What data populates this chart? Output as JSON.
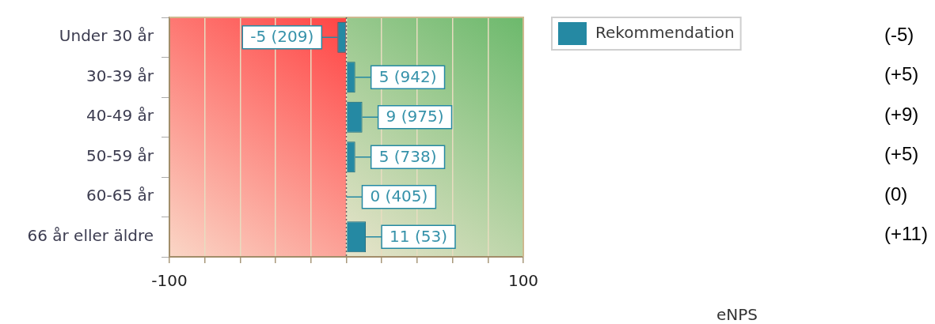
{
  "chart_data": {
    "type": "bar",
    "orientation": "horizontal",
    "categories": [
      "Under 30 år",
      "30-39 år",
      "40-49 år",
      "50-59 år",
      "60-65 år",
      "66 år eller äldre"
    ],
    "series": [
      {
        "name": "Rekommendation",
        "color": "#2589a3",
        "values": [
          -5,
          5,
          9,
          5,
          0,
          11
        ],
        "value_labels": [
          "-5 (209)",
          "5 (942)",
          "9 (975)",
          "5 (738)",
          "0 (405)",
          "11 (53)"
        ]
      }
    ],
    "xlim": [
      -100,
      100
    ],
    "xticks": [
      -100,
      {
        "value": -80,
        "label": null
      },
      {
        "value": -60,
        "label": null
      },
      {
        "value": -40,
        "label": null
      },
      {
        "value": -20,
        "label": null
      },
      {
        "value": 0,
        "label": null
      },
      {
        "value": 20,
        "label": null
      },
      {
        "value": 40,
        "label": null
      },
      {
        "value": 60,
        "label": null
      },
      {
        "value": 80,
        "label": null
      },
      100
    ],
    "grid": "x",
    "legend": "right",
    "bands": [
      {
        "axis": "x",
        "from": -100,
        "to": 0,
        "color": "#ff4444"
      },
      {
        "axis": "x",
        "from": 0,
        "to": 100,
        "color": "#6cb96c"
      }
    ],
    "ref_lines": [
      {
        "axis": "x",
        "value": 0,
        "color": "#666666",
        "line_style": "dotted"
      }
    ],
    "annotations": [
      "(-5)",
      "(+5)",
      "(+9)",
      "(+5)",
      "(0)",
      "(+11)",
      "eNPS"
    ]
  }
}
